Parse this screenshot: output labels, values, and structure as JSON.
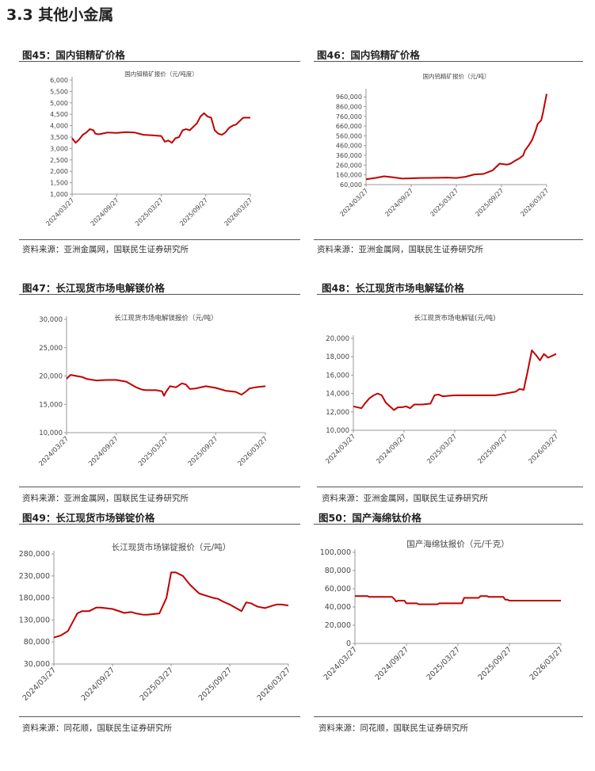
{
  "section": {
    "title": "3.3 其他小金属"
  },
  "colors": {
    "line": "#c00000",
    "axis": "#999999",
    "rule": "#555555"
  },
  "figures": [
    {
      "title": "图45：国内钼精矿价格",
      "source": "资料来源：亚洲金属网，国联民生证券研究所"
    },
    {
      "title": "图46：国内钨精矿价格",
      "source": "资料来源：亚洲金属网，国联民生证券研究所"
    },
    {
      "title": "图47：长江现货市场电解镁价格",
      "source": "资料来源：亚洲金属网，国联民生证券研究所"
    },
    {
      "title": "图48：长江现货市场电解锰价格",
      "source": "资料来源：亚洲金属网，国联民生证券研究所"
    },
    {
      "title": "图49：长江现货市场锑锭价格",
      "source": "资料来源：同花顺，国联民生证券研究所"
    },
    {
      "title": "图50：国产海绵钛价格",
      "source": "资料来源：同花顺，国联民生证券研究所"
    }
  ],
  "chart_data": [
    {
      "type": "line",
      "title": "国内钼精矿报价（元/吨度）",
      "x_tick_labels": [
        "2024/03/27",
        "2024/09/27",
        "2025/03/27",
        "2025/09/27",
        "2026/03/27"
      ],
      "y_tick_labels": [
        "6,000",
        "5,500",
        "5,000",
        "4,500",
        "4,000",
        "3,500",
        "3,000",
        "2,500",
        "2,000",
        "1,500",
        "1,000"
      ],
      "ylim": [
        1000,
        6000
      ],
      "grid": false,
      "x": [
        0,
        0.02,
        0.04,
        0.06,
        0.08,
        0.1,
        0.12,
        0.13,
        0.15,
        0.2,
        0.25,
        0.3,
        0.35,
        0.4,
        0.45,
        0.5,
        0.52,
        0.54,
        0.56,
        0.58,
        0.6,
        0.62,
        0.64,
        0.66,
        0.7,
        0.72,
        0.74,
        0.76,
        0.78,
        0.8,
        0.82,
        0.84,
        0.86,
        0.88,
        0.9,
        0.92,
        0.94,
        0.96,
        1.0
      ],
      "series": [
        {
          "values": [
            3450,
            3250,
            3400,
            3600,
            3700,
            3850,
            3800,
            3650,
            3620,
            3700,
            3680,
            3720,
            3700,
            3600,
            3580,
            3550,
            3300,
            3350,
            3250,
            3450,
            3500,
            3800,
            3850,
            3800,
            4100,
            4400,
            4550,
            4400,
            4350,
            3800,
            3650,
            3600,
            3700,
            3900,
            4000,
            4050,
            4200,
            4350,
            4350
          ]
        }
      ]
    },
    {
      "type": "line",
      "title": "国内钨精矿报价（元/吨）",
      "x_tick_labels": [
        "2024/03/27",
        "2024/09/27",
        "2025/03/27",
        "2025/09/27",
        "2026/03/27"
      ],
      "y_tick_labels": [
        "960,000",
        "860,000",
        "760,000",
        "660,000",
        "560,000",
        "460,000",
        "360,000",
        "260,000",
        "160,000",
        "60,000"
      ],
      "ylim": [
        60000,
        1010000
      ],
      "grid": false,
      "x": [
        0,
        0.05,
        0.1,
        0.15,
        0.2,
        0.3,
        0.4,
        0.45,
        0.5,
        0.55,
        0.6,
        0.65,
        0.7,
        0.74,
        0.78,
        0.8,
        0.83,
        0.85,
        0.87,
        0.88,
        0.9,
        0.92,
        0.94,
        0.95,
        0.97,
        0.98,
        1.0
      ],
      "series": [
        {
          "values": [
            115000,
            128000,
            145000,
            135000,
            122000,
            128000,
            130000,
            132000,
            128000,
            140000,
            165000,
            170000,
            205000,
            275000,
            265000,
            275000,
            310000,
            330000,
            360000,
            410000,
            460000,
            520000,
            620000,
            680000,
            720000,
            800000,
            990000
          ]
        }
      ]
    },
    {
      "type": "line",
      "title": "长江现货市场电解镁报价（元/吨）",
      "x_tick_labels": [
        "2024/03/27",
        "2024/09/27",
        "2025/03/27",
        "2025/09/27",
        "2026/03/27"
      ],
      "y_tick_labels": [
        "30,000",
        "25,000",
        "20,000",
        "15,000",
        "10,000"
      ],
      "ylim": [
        10000,
        30000
      ],
      "grid": false,
      "x": [
        0,
        0.02,
        0.05,
        0.08,
        0.1,
        0.15,
        0.2,
        0.25,
        0.3,
        0.35,
        0.38,
        0.4,
        0.42,
        0.45,
        0.48,
        0.49,
        0.5,
        0.52,
        0.55,
        0.58,
        0.6,
        0.62,
        0.65,
        0.7,
        0.75,
        0.8,
        0.85,
        0.88,
        0.9,
        0.92,
        0.95,
        1.0
      ],
      "series": [
        {
          "values": [
            19500,
            20200,
            20000,
            19800,
            19500,
            19200,
            19300,
            19300,
            19000,
            18000,
            17600,
            17500,
            17500,
            17500,
            17300,
            16500,
            17200,
            18200,
            18000,
            18700,
            18500,
            17700,
            17800,
            18200,
            17900,
            17400,
            17200,
            16700,
            17200,
            17800,
            18000,
            18200
          ]
        }
      ]
    },
    {
      "type": "line",
      "title": "长江现货市场电解锰(元/吨)",
      "x_tick_labels": [
        "2024/03/27",
        "2024/09/27",
        "2025/03/27",
        "2025/09/27",
        "2026/03/27"
      ],
      "y_tick_labels": [
        "20,000",
        "18,000",
        "16,000",
        "14,000",
        "12,000",
        "10,000"
      ],
      "ylim": [
        10000,
        20000
      ],
      "grid": false,
      "x": [
        0,
        0.04,
        0.06,
        0.08,
        0.1,
        0.12,
        0.14,
        0.16,
        0.18,
        0.2,
        0.22,
        0.24,
        0.26,
        0.28,
        0.3,
        0.34,
        0.38,
        0.4,
        0.42,
        0.44,
        0.5,
        0.6,
        0.7,
        0.75,
        0.8,
        0.82,
        0.84,
        0.86,
        0.88,
        0.9,
        0.92,
        0.94,
        0.96,
        1.0
      ],
      "series": [
        {
          "values": [
            12600,
            12400,
            13000,
            13500,
            13800,
            14000,
            13800,
            13000,
            12600,
            12200,
            12500,
            12500,
            12600,
            12400,
            12800,
            12800,
            12900,
            13800,
            13900,
            13700,
            13800,
            13800,
            13800,
            14000,
            14200,
            14500,
            14400,
            16500,
            18700,
            18200,
            17600,
            18300,
            17900,
            18300
          ]
        }
      ]
    },
    {
      "type": "line",
      "title": "长江现货市场锑锭报价（元/吨）",
      "x_tick_labels": [
        "2024/03/27",
        "2024/09/27",
        "2025/03/27",
        "2025/09/27",
        "2026/03/27"
      ],
      "y_tick_labels": [
        "280,000",
        "230,000",
        "180,000",
        "130,000",
        "80,000",
        "30,000"
      ],
      "ylim": [
        30000,
        280000
      ],
      "grid": false,
      "x": [
        0,
        0.03,
        0.06,
        0.08,
        0.1,
        0.12,
        0.15,
        0.18,
        0.2,
        0.25,
        0.3,
        0.33,
        0.35,
        0.38,
        0.4,
        0.45,
        0.48,
        0.5,
        0.52,
        0.55,
        0.58,
        0.6,
        0.62,
        0.65,
        0.68,
        0.7,
        0.72,
        0.75,
        0.8,
        0.82,
        0.84,
        0.85,
        0.87,
        0.9,
        0.93,
        0.95,
        0.97,
        1.0
      ],
      "series": [
        {
          "values": [
            90000,
            95000,
            105000,
            125000,
            145000,
            150000,
            150000,
            158000,
            158000,
            155000,
            146000,
            148000,
            145000,
            142000,
            142000,
            145000,
            180000,
            238000,
            238000,
            230000,
            210000,
            200000,
            190000,
            185000,
            180000,
            178000,
            172000,
            165000,
            150000,
            170000,
            168000,
            165000,
            160000,
            157000,
            162000,
            165000,
            165000,
            163000
          ]
        }
      ]
    },
    {
      "type": "line",
      "title": "国产海绵钛报价（元/千克）",
      "x_tick_labels": [
        "2024/03/27",
        "2024/09/27",
        "2025/03/27",
        "2025/09/27",
        "2026/03/27"
      ],
      "y_tick_labels": [
        "100,000",
        "80,000",
        "60,000",
        "40,000",
        "20,000",
        "0"
      ],
      "ylim": [
        0,
        100000
      ],
      "grid": false,
      "x": [
        0,
        0.06,
        0.07,
        0.18,
        0.19,
        0.2,
        0.21,
        0.24,
        0.25,
        0.3,
        0.31,
        0.4,
        0.41,
        0.52,
        0.53,
        0.6,
        0.61,
        0.64,
        0.65,
        0.72,
        0.73,
        0.74,
        0.75,
        1.0
      ],
      "series": [
        {
          "values": [
            52000,
            52000,
            51000,
            51000,
            49000,
            46000,
            47000,
            47000,
            44000,
            44000,
            43000,
            43000,
            44000,
            44000,
            50000,
            50000,
            52000,
            52000,
            51000,
            51000,
            48000,
            48000,
            47000,
            47000
          ]
        }
      ]
    }
  ]
}
